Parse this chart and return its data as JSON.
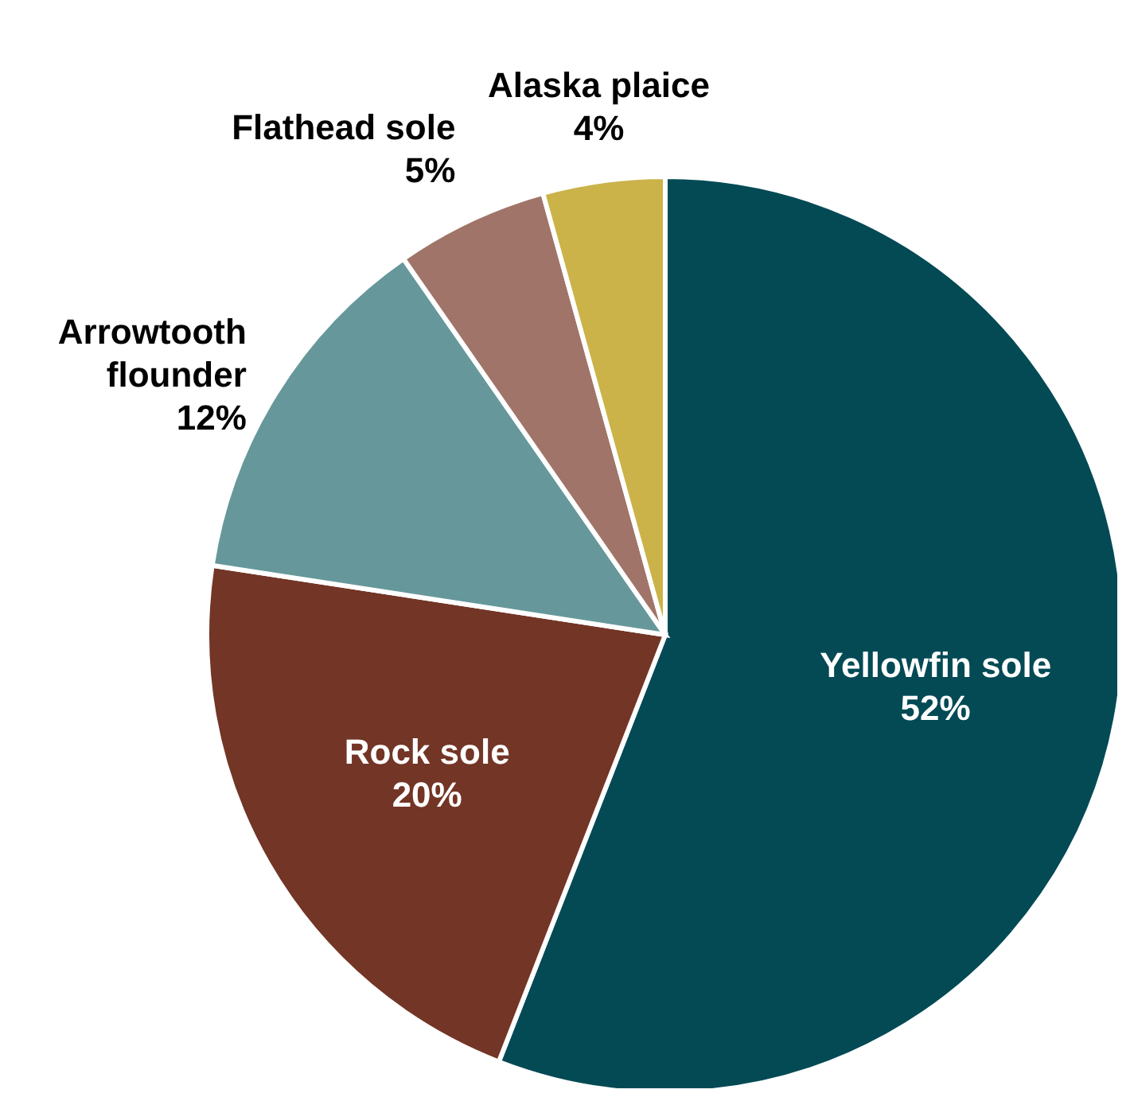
{
  "chart_data": {
    "type": "pie",
    "categories": [
      "Yellowfin sole",
      "Rock sole",
      "Arrowtooth flounder",
      "Flathead sole",
      "Alaska plaice"
    ],
    "values": [
      52,
      20,
      12,
      5,
      4
    ],
    "value_labels": [
      "52%",
      "20%",
      "12%",
      "5%",
      "4%"
    ],
    "colors": [
      "#034a55",
      "#733526",
      "#66989b",
      "#a07468",
      "#cbb34a"
    ],
    "legend": false
  }
}
